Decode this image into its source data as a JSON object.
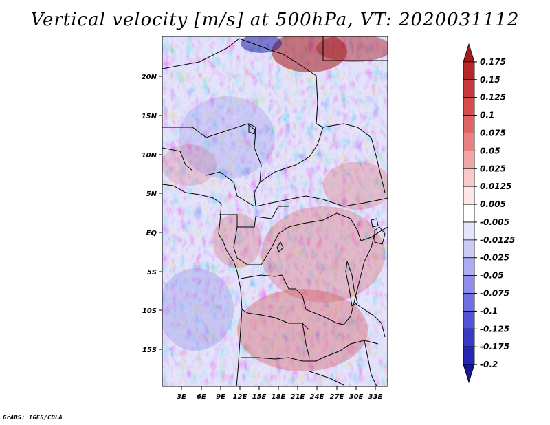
{
  "title": "Vertical velocity [m/s] at 500hPa, VT: 2020031112",
  "footer": "GrADS: IGES/COLA",
  "map": {
    "lon_labels": [
      "3E",
      "6E",
      "9E",
      "12E",
      "15E",
      "18E",
      "21E",
      "24E",
      "27E",
      "30E",
      "33E"
    ],
    "lat_labels": [
      "20N",
      "15N",
      "10N",
      "5N",
      "EQ",
      "5S",
      "10S",
      "15S"
    ],
    "region": "Central Africa",
    "variable": "vertical velocity",
    "level": "500hPa",
    "valid_time": "2020031112"
  },
  "colorbar": {
    "unit": "m/s",
    "labels": [
      "0.175",
      "0.15",
      "0.125",
      "0.1",
      "0.075",
      "0.05",
      "0.025",
      "0.0125",
      "0.005",
      "-0.005",
      "-0.0125",
      "-0.025",
      "-0.05",
      "-0.075",
      "-0.1",
      "-0.125",
      "-0.175",
      "-0.2"
    ],
    "colors": [
      "#a51a1a",
      "#b8262a",
      "#c8383c",
      "#d64c4c",
      "#e06464",
      "#e88282",
      "#f0a6a6",
      "#f7caca",
      "#fce6e6",
      "#ffffff",
      "#e4e4fb",
      "#cacaf6",
      "#acacf0",
      "#8e8eea",
      "#7070e2",
      "#5454d6",
      "#3a3ac6",
      "#2626b4",
      "#16169c"
    ]
  }
}
